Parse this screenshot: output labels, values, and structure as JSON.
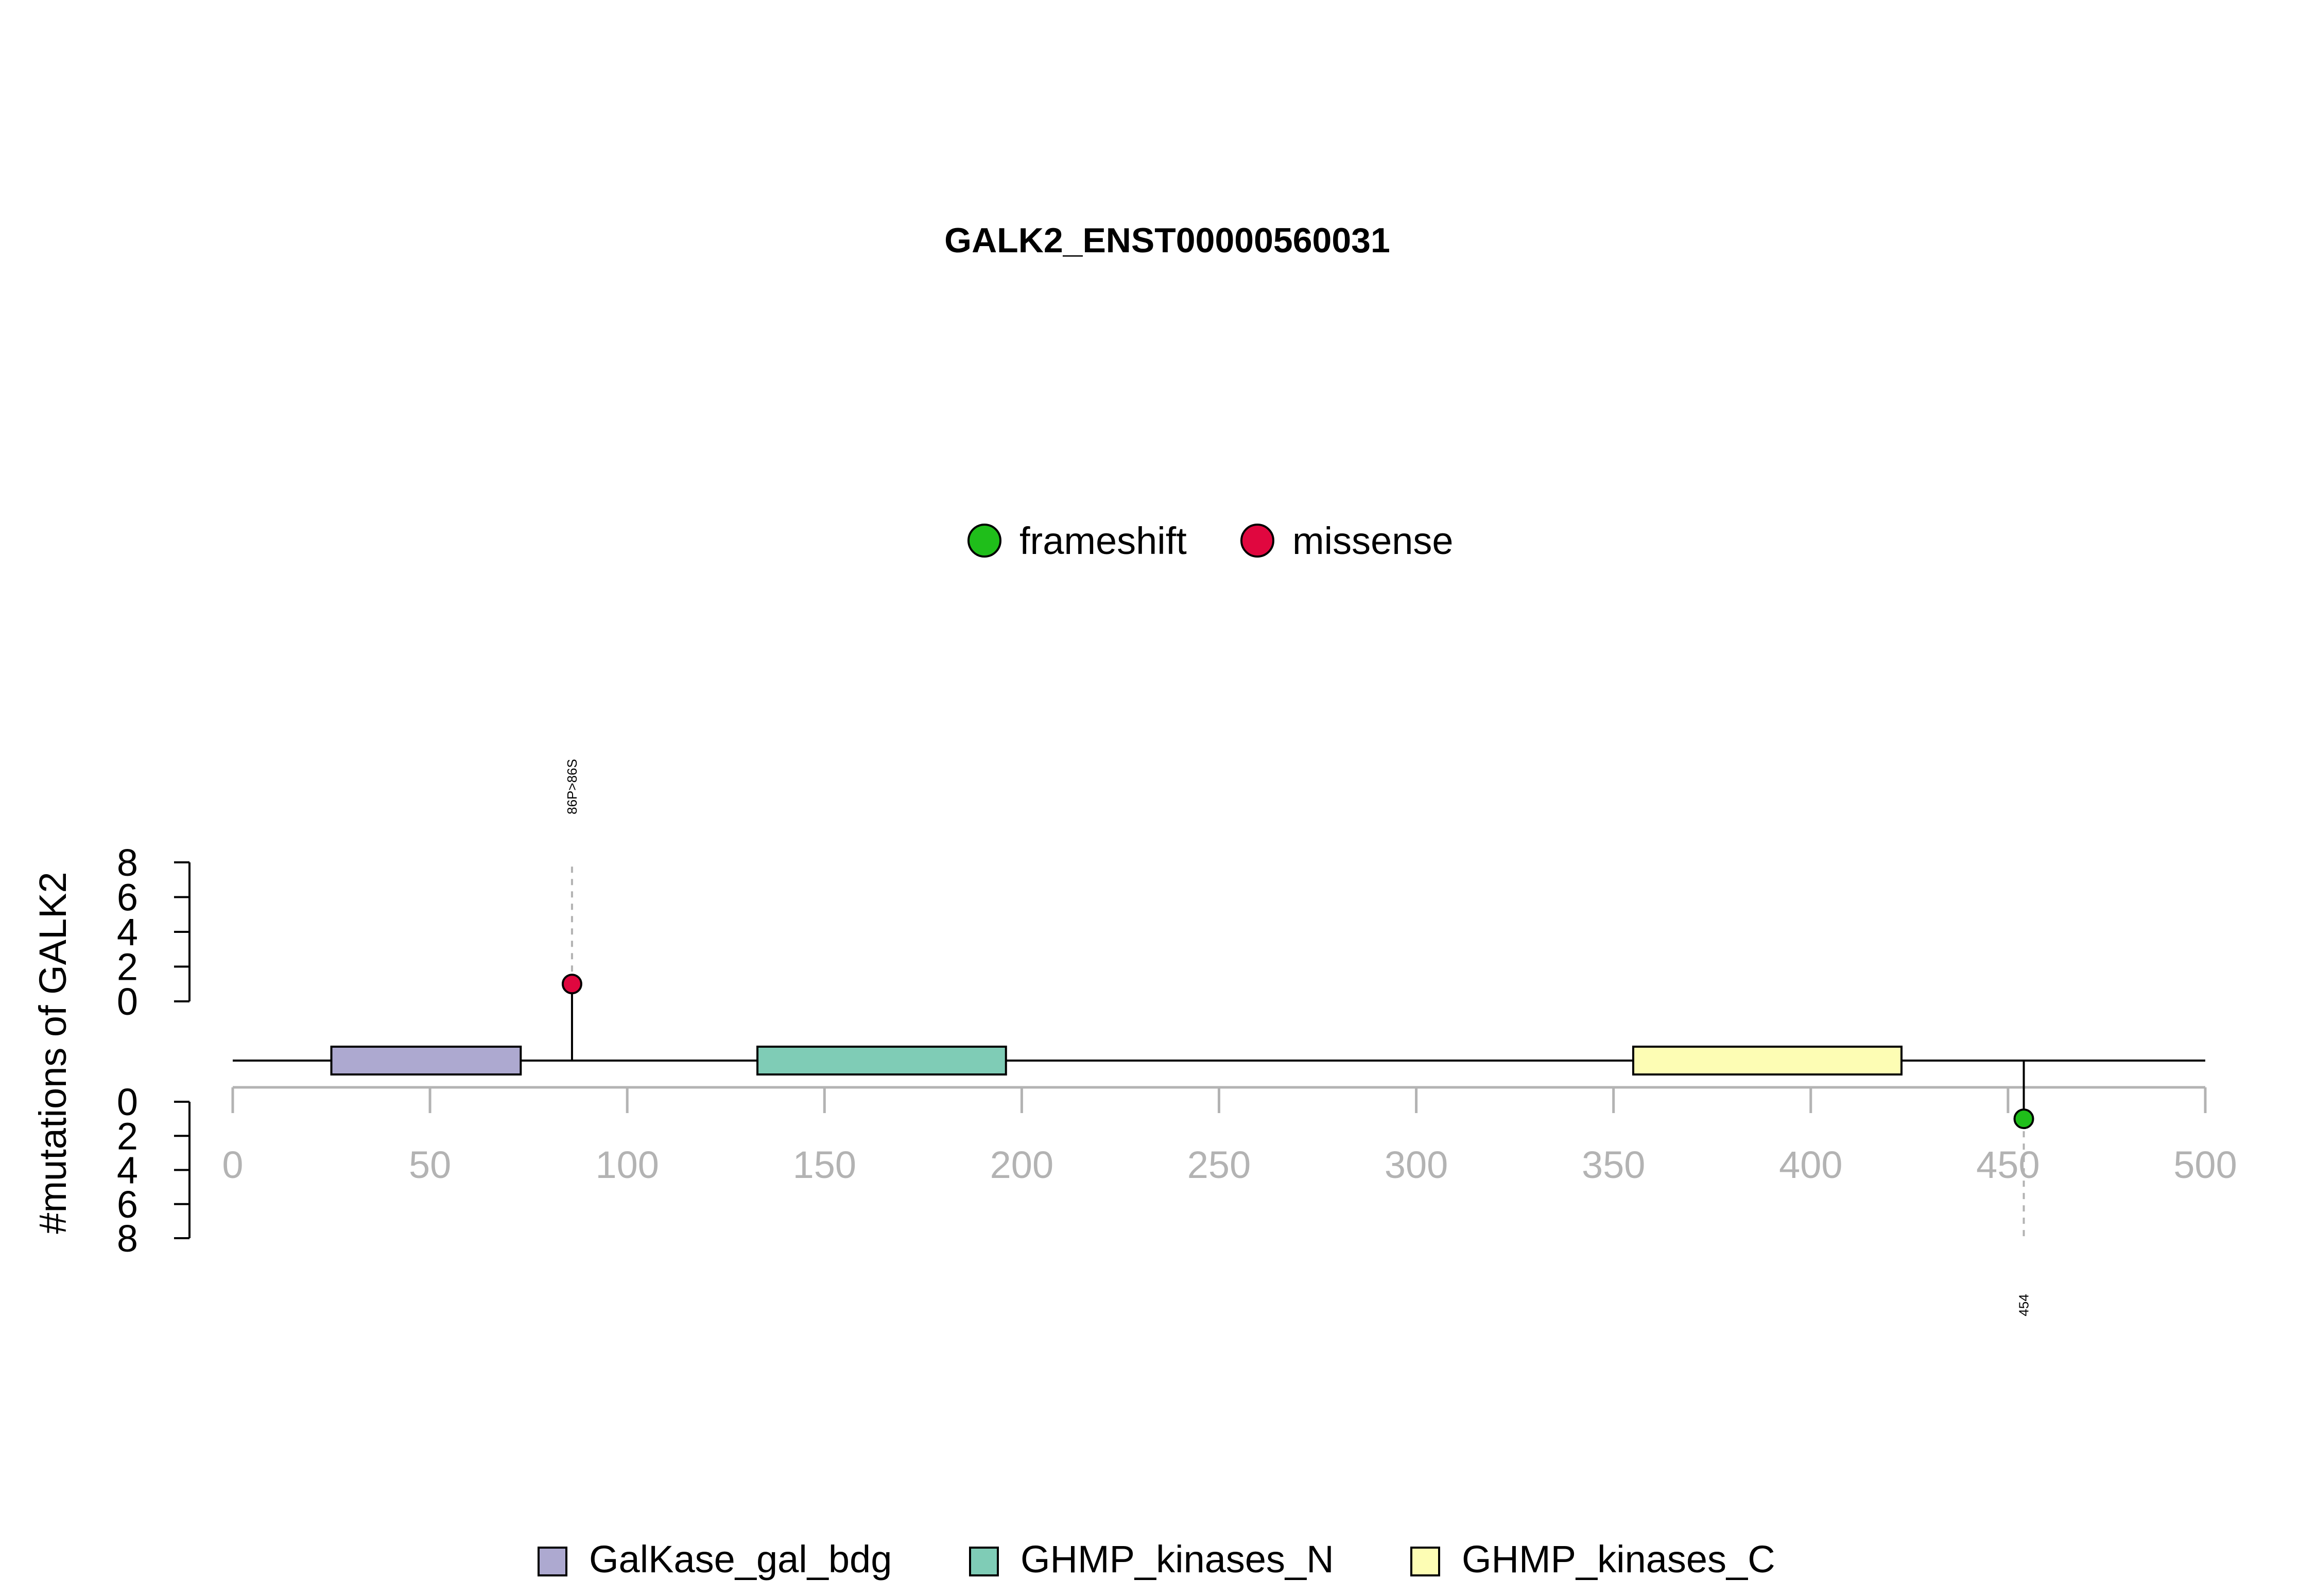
{
  "chart_data": {
    "type": "lollipop",
    "title": "GALK2_ENST00000560031",
    "ylabel": "#mutations of GALK2",
    "xlim": [
      0,
      500
    ],
    "x_ticks": [
      0,
      50,
      100,
      150,
      200,
      250,
      300,
      350,
      400,
      450,
      500
    ],
    "y_ticks_top": [
      0,
      2,
      4,
      6,
      8
    ],
    "y_ticks_bottom": [
      0,
      2,
      4,
      6,
      8
    ],
    "ylim": [
      0,
      8
    ],
    "mutation_legend": [
      {
        "label": "frameshift",
        "color": "#1FBE1A"
      },
      {
        "label": "missense",
        "color": "#E0073F"
      }
    ],
    "mutations_top": [
      {
        "position": 86,
        "count": 1,
        "type": "missense",
        "label": "86P>86S",
        "color": "#E0073F"
      }
    ],
    "mutations_bottom": [
      {
        "position": 454,
        "count": 1,
        "type": "frameshift",
        "label": "454",
        "color": "#1FBE1A"
      }
    ],
    "domains": [
      {
        "name": "GalKase_gal_bdg",
        "start": 25,
        "end": 73,
        "color": "#ADA9D0"
      },
      {
        "name": "GHMP_kinases_N",
        "start": 133,
        "end": 196,
        "color": "#7FCCB6"
      },
      {
        "name": "GHMP_kinases_C",
        "start": 355,
        "end": 423,
        "color": "#FDFDB4"
      }
    ]
  }
}
